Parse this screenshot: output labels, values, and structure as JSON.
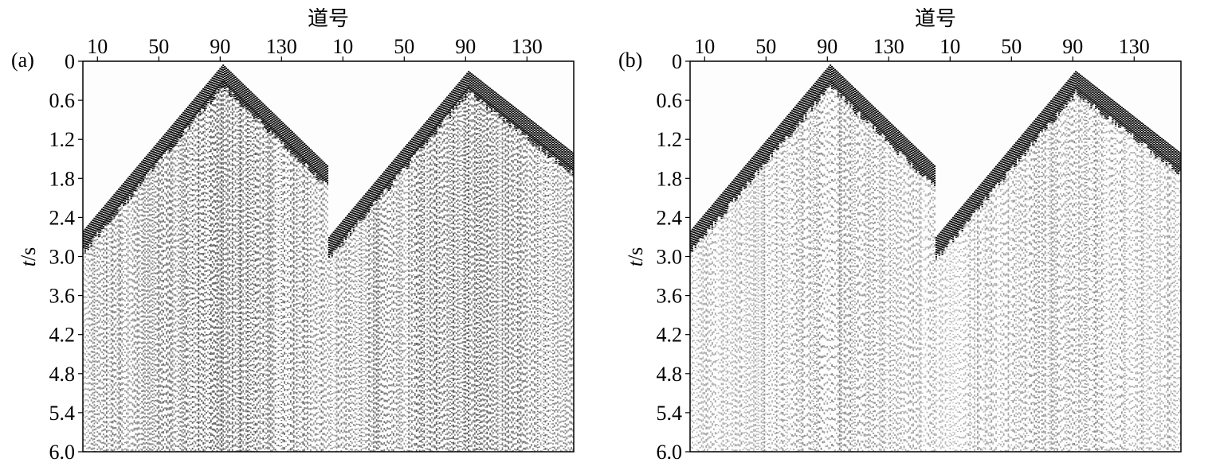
{
  "chart_data": [
    {
      "type": "heatmap",
      "panel_label": "(a)",
      "xlabel": "道号",
      "ylabel_italic": "t",
      "ylabel_unit": "/s",
      "x_tick_labels": [
        "10",
        "50",
        "90",
        "130",
        "10",
        "50",
        "90",
        "130"
      ],
      "y_tick_labels": [
        "0",
        "0.6",
        "1.2",
        "1.8",
        "2.4",
        "3.0",
        "3.6",
        "4.2",
        "4.8",
        "5.4",
        "6.0"
      ],
      "y_ticks": [
        0,
        0.6,
        1.2,
        1.8,
        2.4,
        3.0,
        3.6,
        4.2,
        4.8,
        5.4,
        6.0
      ],
      "ylim": [
        0,
        6.0
      ],
      "traces_per_gather": 160,
      "gathers": [
        {
          "first_trace": 1,
          "last_trace": 160,
          "apex_trace": 92,
          "apex_time": 0.05,
          "left_edge_time": 2.6,
          "right_edge_time": 1.6
        },
        {
          "first_trace": 1,
          "last_trace": 160,
          "apex_trace": 92,
          "apex_time": 0.15,
          "left_edge_time": 2.7,
          "right_edge_time": 1.4
        }
      ],
      "noise_level": "high",
      "colormap": "grayscale"
    },
    {
      "type": "heatmap",
      "panel_label": "(b)",
      "xlabel": "道号",
      "ylabel_italic": "t",
      "ylabel_unit": "/s",
      "x_tick_labels": [
        "10",
        "50",
        "90",
        "130",
        "10",
        "50",
        "90",
        "130"
      ],
      "y_tick_labels": [
        "0",
        "0.6",
        "1.2",
        "1.8",
        "2.4",
        "3.0",
        "3.6",
        "4.2",
        "4.8",
        "5.4",
        "6.0"
      ],
      "y_ticks": [
        0,
        0.6,
        1.2,
        1.8,
        2.4,
        3.0,
        3.6,
        4.2,
        4.8,
        5.4,
        6.0
      ],
      "ylim": [
        0,
        6.0
      ],
      "traces_per_gather": 160,
      "gathers": [
        {
          "first_trace": 1,
          "last_trace": 160,
          "apex_trace": 92,
          "apex_time": 0.05,
          "left_edge_time": 2.6,
          "right_edge_time": 1.6
        },
        {
          "first_trace": 1,
          "last_trace": 160,
          "apex_trace": 92,
          "apex_time": 0.15,
          "left_edge_time": 2.7,
          "right_edge_time": 1.4
        }
      ],
      "noise_level": "low",
      "colormap": "grayscale"
    }
  ]
}
